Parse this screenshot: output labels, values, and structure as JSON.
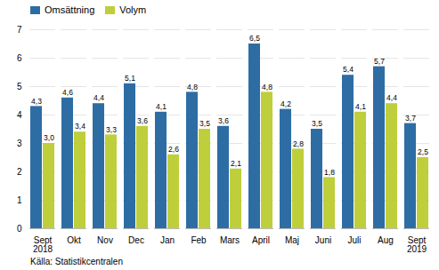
{
  "chart_data": {
    "type": "bar",
    "caption": "Källa: Statistikcentralen",
    "categories": [
      "Sept\n2018",
      "Okt",
      "Nov",
      "Dec",
      "Jan",
      "Feb",
      "Mars",
      "April",
      "Maj",
      "Juni",
      "Juli",
      "Aug",
      "Sept\n2019"
    ],
    "series": [
      {
        "name": "Omsättning",
        "color": "#2E6DA4",
        "values": [
          4.3,
          4.6,
          4.4,
          5.1,
          4.1,
          4.8,
          3.6,
          6.5,
          4.2,
          3.5,
          5.4,
          5.7,
          3.7
        ],
        "value_labels": [
          "4,3",
          "4,6",
          "4,4",
          "5,1",
          "4,1",
          "4,8",
          "3,6",
          "6,5",
          "4,2",
          "3,5",
          "5,4",
          "5,7",
          "3,7"
        ]
      },
      {
        "name": "Volym",
        "color": "#BFCE3B",
        "values": [
          3.0,
          3.4,
          3.3,
          3.6,
          2.6,
          3.5,
          2.1,
          4.8,
          2.8,
          1.8,
          4.1,
          4.4,
          2.5
        ],
        "value_labels": [
          "3,0",
          "3,4",
          "3,3",
          "3,6",
          "2,6",
          "3,5",
          "2,1",
          "4,8",
          "2,8",
          "1,8",
          "4,1",
          "4,4",
          "2,5"
        ]
      }
    ],
    "ylim": [
      0,
      7
    ],
    "yticks": [
      0,
      1,
      2,
      3,
      4,
      5,
      6,
      7
    ],
    "grid": true,
    "legend": "upper left",
    "data_labels": true
  }
}
